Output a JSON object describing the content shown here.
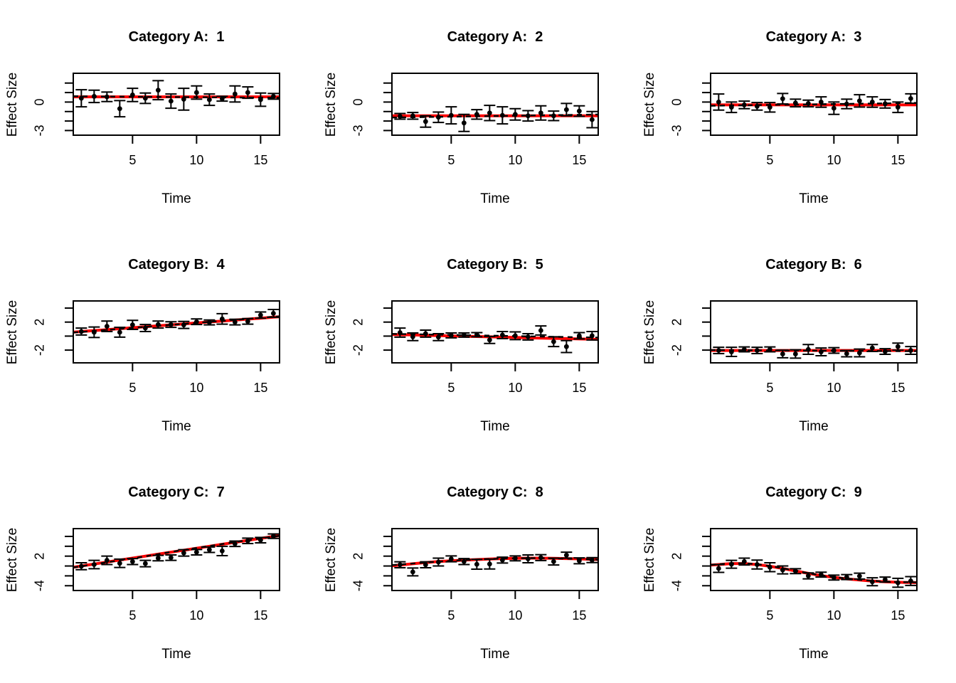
{
  "figure": {
    "background": "#ffffff",
    "colors": {
      "point": "#000000",
      "error_bar": "#000000",
      "true_line": "#ff0000",
      "fit_line": "#000000",
      "box": "#000000"
    }
  },
  "chart_data": [
    {
      "type": "scatter",
      "title": "Category A:  1",
      "xlabel": "Time",
      "ylabel": "Effect Size",
      "x": [
        1,
        2,
        3,
        4,
        5,
        6,
        7,
        8,
        9,
        10,
        11,
        12,
        13,
        14,
        15,
        16
      ],
      "y": [
        0.4,
        0.6,
        0.55,
        -0.7,
        0.75,
        0.4,
        1.25,
        0.1,
        0.3,
        1.0,
        0.25,
        0.35,
        0.85,
        1.0,
        0.25,
        0.6
      ],
      "se": [
        0.9,
        0.65,
        0.5,
        0.85,
        0.7,
        0.55,
        1.0,
        0.75,
        1.15,
        0.7,
        0.6,
        0.25,
        0.85,
        0.6,
        0.7,
        0.3
      ],
      "true_line": [
        0.55,
        0.55,
        0.55,
        0.55,
        0.55,
        0.55,
        0.55,
        0.55,
        0.55,
        0.55,
        0.55,
        0.55,
        0.55,
        0.55,
        0.55,
        0.55
      ],
      "fit_line": [
        0.6,
        0.59,
        0.58,
        0.57,
        0.56,
        0.55,
        0.54,
        0.53,
        0.52,
        0.51,
        0.5,
        0.49,
        0.48,
        0.47,
        0.46,
        0.45
      ],
      "xlim": [
        0.37,
        16.48
      ],
      "ylim": [
        -3.49,
        3.03
      ],
      "xticks": [
        5,
        10,
        15
      ],
      "yticks": [
        2,
        1,
        0,
        -1,
        -2,
        -3
      ],
      "ytick_labels": [
        {
          "value": 0,
          "label": "0"
        },
        {
          "value": -3,
          "label": "-3"
        }
      ],
      "grid": false,
      "legend": false
    },
    {
      "type": "scatter",
      "title": "Category A:  2",
      "xlabel": "Time",
      "ylabel": "Effect Size",
      "x": [
        1,
        2,
        3,
        4,
        5,
        6,
        7,
        8,
        9,
        10,
        11,
        12,
        13,
        14,
        15,
        16
      ],
      "y": [
        -1.5,
        -1.45,
        -2.05,
        -1.6,
        -1.4,
        -2.2,
        -1.3,
        -1.15,
        -1.4,
        -1.3,
        -1.45,
        -1.15,
        -1.45,
        -0.8,
        -0.95,
        -1.85
      ],
      "se": [
        0.3,
        0.35,
        0.6,
        0.55,
        0.9,
        0.9,
        0.5,
        0.8,
        0.9,
        0.6,
        0.55,
        0.75,
        0.5,
        0.65,
        0.55,
        0.85
      ],
      "true_line": [
        -1.45,
        -1.45,
        -1.45,
        -1.45,
        -1.45,
        -1.45,
        -1.45,
        -1.45,
        -1.45,
        -1.45,
        -1.45,
        -1.45,
        -1.45,
        -1.45,
        -1.45,
        -1.45
      ],
      "fit_line": [
        -1.62,
        -1.6,
        -1.58,
        -1.56,
        -1.54,
        -1.52,
        -1.5,
        -1.48,
        -1.46,
        -1.44,
        -1.42,
        -1.4,
        -1.38,
        -1.36,
        -1.34,
        -1.32
      ],
      "xlim": [
        0.37,
        16.48
      ],
      "ylim": [
        -3.49,
        3.03
      ],
      "xticks": [
        5,
        10,
        15
      ],
      "yticks": [
        2,
        1,
        0,
        -1,
        -2,
        -3
      ],
      "ytick_labels": [
        {
          "value": 0,
          "label": "0"
        },
        {
          "value": -3,
          "label": "-3"
        }
      ],
      "grid": false,
      "legend": false
    },
    {
      "type": "scatter",
      "title": "Category A:  3",
      "xlabel": "Time",
      "ylabel": "Effect Size",
      "x": [
        1,
        2,
        3,
        4,
        5,
        6,
        7,
        8,
        9,
        10,
        11,
        12,
        13,
        14,
        15,
        16
      ],
      "y": [
        0.0,
        -0.55,
        -0.3,
        -0.45,
        -0.55,
        0.35,
        -0.1,
        -0.15,
        0.0,
        -0.65,
        -0.2,
        0.12,
        0.0,
        -0.18,
        -0.55,
        0.37
      ],
      "se": [
        0.85,
        0.55,
        0.4,
        0.4,
        0.5,
        0.55,
        0.4,
        0.35,
        0.55,
        0.65,
        0.5,
        0.65,
        0.55,
        0.45,
        0.55,
        0.5
      ],
      "true_line": [
        -0.3,
        -0.3,
        -0.3,
        -0.3,
        -0.3,
        -0.3,
        -0.3,
        -0.3,
        -0.3,
        -0.3,
        -0.3,
        -0.3,
        -0.3,
        -0.3,
        -0.3,
        -0.3
      ],
      "fit_line": [
        -0.38,
        -0.36,
        -0.34,
        -0.32,
        -0.3,
        -0.28,
        -0.27,
        -0.25,
        -0.23,
        -0.21,
        -0.19,
        -0.17,
        -0.16,
        -0.14,
        -0.12,
        -0.1
      ],
      "xlim": [
        0.37,
        16.48
      ],
      "ylim": [
        -3.49,
        3.03
      ],
      "xticks": [
        5,
        10,
        15
      ],
      "yticks": [
        2,
        1,
        0,
        -1,
        -2,
        -3
      ],
      "ytick_labels": [
        {
          "value": 0,
          "label": "0"
        },
        {
          "value": -3,
          "label": "-3"
        }
      ],
      "grid": false,
      "legend": false
    },
    {
      "type": "scatter",
      "title": "Category B:  4",
      "xlabel": "Time",
      "ylabel": "Effect Size",
      "x": [
        1,
        2,
        3,
        4,
        5,
        6,
        7,
        8,
        9,
        10,
        11,
        12,
        13,
        14,
        15,
        16
      ],
      "y": [
        0.65,
        0.55,
        1.4,
        0.55,
        1.6,
        1.15,
        1.65,
        1.65,
        1.6,
        2.05,
        1.95,
        2.45,
        2.0,
        2.1,
        3.0,
        3.25
      ],
      "se": [
        0.5,
        0.75,
        0.75,
        0.7,
        0.65,
        0.5,
        0.5,
        0.4,
        0.5,
        0.4,
        0.35,
        0.75,
        0.4,
        0.4,
        0.45,
        0.55
      ],
      "true_line": [
        0.65,
        0.79,
        0.92,
        1.06,
        1.2,
        1.33,
        1.47,
        1.61,
        1.74,
        1.88,
        2.02,
        2.15,
        2.29,
        2.43,
        2.56,
        2.7
      ],
      "fit_line": [
        0.6,
        0.74,
        0.89,
        1.03,
        1.17,
        1.32,
        1.46,
        1.6,
        1.75,
        1.89,
        2.03,
        2.18,
        2.32,
        2.46,
        2.61,
        2.75
      ],
      "xlim": [
        0.37,
        16.48
      ],
      "ylim": [
        -3.82,
        5.02
      ],
      "xticks": [
        5,
        10,
        15
      ],
      "yticks": [
        4,
        2,
        0,
        -2
      ],
      "ytick_labels": [
        {
          "value": 2,
          "label": "2"
        },
        {
          "value": -2,
          "label": "-2"
        }
      ],
      "grid": false,
      "legend": false
    },
    {
      "type": "scatter",
      "title": "Category B:  5",
      "xlabel": "Time",
      "ylabel": "Effect Size",
      "x": [
        1,
        2,
        3,
        4,
        5,
        6,
        7,
        8,
        9,
        10,
        11,
        12,
        13,
        14,
        15,
        16
      ],
      "y": [
        0.5,
        -0.1,
        0.35,
        -0.15,
        0.1,
        0.15,
        0.2,
        -0.55,
        0.15,
        0.05,
        -0.1,
        0.8,
        -0.8,
        -1.5,
        0.05,
        0.05
      ],
      "se": [
        0.65,
        0.55,
        0.5,
        0.5,
        0.35,
        0.3,
        0.3,
        0.5,
        0.5,
        0.55,
        0.45,
        0.65,
        0.7,
        0.85,
        0.45,
        0.6
      ],
      "true_line": [
        0.2,
        0.16,
        0.11,
        0.07,
        0.03,
        -0.02,
        -0.06,
        -0.1,
        -0.15,
        -0.19,
        -0.23,
        -0.28,
        -0.32,
        -0.36,
        -0.41,
        -0.45
      ],
      "fit_line": [
        0.3,
        0.27,
        0.23,
        0.2,
        0.17,
        0.13,
        0.1,
        0.07,
        0.03,
        0.0,
        -0.03,
        -0.07,
        -0.1,
        -0.13,
        -0.17,
        -0.2
      ],
      "xlim": [
        0.37,
        16.48
      ],
      "ylim": [
        -3.82,
        5.02
      ],
      "xticks": [
        5,
        10,
        15
      ],
      "yticks": [
        4,
        2,
        0,
        -2
      ],
      "ytick_labels": [
        {
          "value": 2,
          "label": "2"
        },
        {
          "value": -2,
          "label": "-2"
        }
      ],
      "grid": false,
      "legend": false
    },
    {
      "type": "scatter",
      "title": "Category B:  6",
      "xlabel": "Time",
      "ylabel": "Effect Size",
      "x": [
        1,
        2,
        3,
        4,
        5,
        6,
        7,
        8,
        9,
        10,
        11,
        12,
        13,
        14,
        15,
        16
      ],
      "y": [
        -2.05,
        -2.25,
        -1.9,
        -2.05,
        -1.9,
        -2.55,
        -2.55,
        -1.9,
        -2.25,
        -2.05,
        -2.5,
        -2.4,
        -1.7,
        -2.2,
        -1.5,
        -2.05
      ],
      "se": [
        0.45,
        0.65,
        0.35,
        0.45,
        0.35,
        0.55,
        0.6,
        0.7,
        0.55,
        0.4,
        0.45,
        0.55,
        0.5,
        0.4,
        0.5,
        0.55
      ],
      "true_line": [
        -2.05,
        -2.05,
        -2.05,
        -2.05,
        -2.05,
        -2.05,
        -2.05,
        -2.05,
        -2.05,
        -2.05,
        -2.05,
        -2.05,
        -2.05,
        -2.05,
        -2.05,
        -2.05
      ],
      "fit_line": [
        -2.0,
        -2.01,
        -2.02,
        -2.03,
        -2.04,
        -2.05,
        -2.06,
        -2.07,
        -2.08,
        -2.09,
        -2.1,
        -2.11,
        -2.12,
        -2.13,
        -2.14,
        -2.15
      ],
      "xlim": [
        0.37,
        16.48
      ],
      "ylim": [
        -3.82,
        5.02
      ],
      "xticks": [
        5,
        10,
        15
      ],
      "yticks": [
        4,
        2,
        0,
        -2
      ],
      "ytick_labels": [
        {
          "value": 2,
          "label": "2"
        },
        {
          "value": -2,
          "label": "-2"
        }
      ],
      "grid": false,
      "legend": false
    },
    {
      "type": "scatter",
      "title": "Category C:  7",
      "xlabel": "Time",
      "ylabel": "Effect Size",
      "x": [
        1,
        2,
        3,
        4,
        5,
        6,
        7,
        8,
        9,
        10,
        11,
        12,
        13,
        14,
        15,
        16
      ],
      "y": [
        -0.05,
        0.3,
        1.15,
        0.55,
        0.9,
        0.5,
        1.6,
        1.7,
        2.65,
        2.8,
        3.3,
        3.05,
        4.5,
        5.1,
        5.25,
        6.05
      ],
      "se": [
        0.7,
        0.85,
        0.85,
        0.85,
        0.6,
        0.65,
        0.55,
        0.55,
        0.65,
        0.55,
        0.55,
        0.95,
        0.55,
        0.55,
        0.55,
        0.45
      ],
      "true_line": [
        0.0,
        0.4,
        0.8,
        1.2,
        1.6,
        2.0,
        2.4,
        2.8,
        3.2,
        3.6,
        4.0,
        4.4,
        4.8,
        5.2,
        5.6,
        6.0
      ],
      "fit_line": [
        -0.05,
        0.35,
        0.75,
        1.15,
        1.55,
        1.95,
        2.4,
        2.85,
        3.25,
        3.65,
        4.05,
        4.45,
        4.85,
        5.2,
        5.6,
        5.95
      ],
      "xlim": [
        0.37,
        16.48
      ],
      "ylim": [
        -4.97,
        7.58
      ],
      "xticks": [
        5,
        10,
        15
      ],
      "yticks": [
        6,
        4,
        2,
        0,
        -2,
        -4
      ],
      "ytick_labels": [
        {
          "value": 2,
          "label": "2"
        },
        {
          "value": -4,
          "label": "-4"
        }
      ],
      "grid": false,
      "legend": false
    },
    {
      "type": "scatter",
      "title": "Category C:  8",
      "xlabel": "Time",
      "ylabel": "Effect Size",
      "x": [
        1,
        2,
        3,
        4,
        5,
        6,
        7,
        8,
        9,
        10,
        11,
        12,
        13,
        14,
        15,
        16
      ],
      "y": [
        0.25,
        -1.2,
        0.25,
        0.8,
        1.45,
        0.9,
        0.35,
        0.4,
        1.2,
        1.55,
        1.45,
        1.7,
        0.9,
        2.2,
        1.05,
        1.2
      ],
      "se": [
        0.6,
        0.8,
        0.6,
        0.8,
        0.6,
        0.6,
        1.0,
        1.0,
        0.6,
        0.5,
        0.8,
        0.6,
        0.7,
        0.6,
        0.6,
        0.5
      ],
      "true_line": [
        0.2,
        0.45,
        0.7,
        0.9,
        1.05,
        1.2,
        1.3,
        1.4,
        1.5,
        1.55,
        1.6,
        1.6,
        1.55,
        1.5,
        1.45,
        1.35
      ],
      "fit_line": [
        0.3,
        0.5,
        0.72,
        0.9,
        1.06,
        1.2,
        1.32,
        1.42,
        1.5,
        1.56,
        1.6,
        1.6,
        1.55,
        1.48,
        1.42,
        1.32
      ],
      "xlim": [
        0.37,
        16.48
      ],
      "ylim": [
        -4.97,
        7.58
      ],
      "xticks": [
        5,
        10,
        15
      ],
      "yticks": [
        6,
        4,
        2,
        0,
        -2,
        -4
      ],
      "ytick_labels": [
        {
          "value": 2,
          "label": "2"
        },
        {
          "value": -4,
          "label": "-4"
        }
      ],
      "grid": false,
      "legend": false
    },
    {
      "type": "scatter",
      "title": "Category C:  9",
      "xlabel": "Time",
      "ylabel": "Effect Size",
      "x": [
        1,
        2,
        3,
        4,
        5,
        6,
        7,
        8,
        9,
        10,
        11,
        12,
        13,
        14,
        15,
        16
      ],
      "y": [
        -0.5,
        0.35,
        0.9,
        0.3,
        -0.25,
        -0.8,
        -1.05,
        -2.0,
        -1.75,
        -2.35,
        -2.25,
        -2.05,
        -3.2,
        -2.75,
        -3.4,
        -3.05
      ],
      "se": [
        0.8,
        0.8,
        0.7,
        0.9,
        0.9,
        0.8,
        0.5,
        0.6,
        0.5,
        0.5,
        0.5,
        0.6,
        0.8,
        0.5,
        0.9,
        0.9
      ],
      "true_line": [
        0.3,
        0.5,
        0.5,
        0.3,
        -0.05,
        -0.5,
        -1.0,
        -1.5,
        -1.95,
        -2.3,
        -2.6,
        -2.85,
        -3.05,
        -3.2,
        -3.3,
        -3.35
      ],
      "fit_line": [
        0.35,
        0.55,
        0.55,
        0.35,
        0.0,
        -0.45,
        -0.95,
        -1.45,
        -1.9,
        -2.25,
        -2.55,
        -2.8,
        -3.0,
        -3.15,
        -3.25,
        -3.3
      ],
      "xlim": [
        0.37,
        16.48
      ],
      "ylim": [
        -4.97,
        7.58
      ],
      "xticks": [
        5,
        10,
        15
      ],
      "yticks": [
        6,
        4,
        2,
        0,
        -2,
        -4
      ],
      "ytick_labels": [
        {
          "value": 2,
          "label": "2"
        },
        {
          "value": -4,
          "label": "-4"
        }
      ],
      "grid": false,
      "legend": false
    }
  ]
}
